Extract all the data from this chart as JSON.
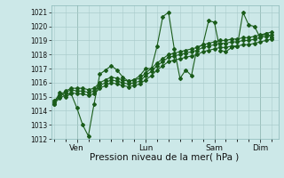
{
  "xlabel": "Pression niveau de la mer( hPa )",
  "bg_color": "#cce8e8",
  "grid_color": "#aacccc",
  "line_color": "#1a5c1a",
  "marker_color": "#1a5c1a",
  "ylim": [
    1012,
    1021.5
  ],
  "yticks": [
    1012,
    1013,
    1014,
    1015,
    1016,
    1017,
    1018,
    1019,
    1020,
    1021
  ],
  "xlim": [
    -3,
    235
  ],
  "day_positions": [
    24,
    96,
    168,
    216
  ],
  "day_labels": [
    "Ven",
    "Lun",
    "Sam",
    "Dim"
  ],
  "vline_color": "#7aaa9a",
  "series1_x": [
    0,
    6,
    12,
    18,
    24,
    30,
    36,
    42,
    48,
    54,
    60,
    66,
    72,
    78,
    84,
    90,
    96,
    102,
    108,
    114,
    120,
    126,
    132,
    138,
    144,
    150,
    156,
    162,
    168,
    174,
    180,
    186,
    192,
    198,
    204,
    210,
    216,
    222,
    228
  ],
  "series1_y": [
    1014.5,
    1015.3,
    1015.0,
    1015.2,
    1014.2,
    1013.0,
    1012.2,
    1014.5,
    1016.6,
    1016.9,
    1017.2,
    1016.9,
    1016.4,
    1016.1,
    1016.2,
    1016.5,
    1017.0,
    1017.0,
    1018.6,
    1020.7,
    1021.0,
    1018.4,
    1016.3,
    1016.9,
    1016.5,
    1018.5,
    1018.7,
    1020.4,
    1020.3,
    1018.3,
    1018.2,
    1018.5,
    1018.6,
    1021.0,
    1020.1,
    1020.0,
    1019.2,
    1019.5,
    1019.2
  ],
  "series2_x": [
    0,
    6,
    12,
    18,
    24,
    30,
    36,
    42,
    48,
    54,
    60,
    66,
    72,
    78,
    84,
    90,
    96,
    102,
    108,
    114,
    120,
    126,
    132,
    138,
    144,
    150,
    156,
    162,
    168,
    174,
    180,
    186,
    192,
    198,
    204,
    210,
    216,
    222,
    228
  ],
  "series2_y": [
    1014.5,
    1014.9,
    1015.1,
    1015.3,
    1015.2,
    1015.2,
    1015.1,
    1015.2,
    1015.6,
    1015.8,
    1016.0,
    1015.9,
    1015.8,
    1015.7,
    1015.8,
    1015.9,
    1016.2,
    1016.5,
    1016.9,
    1017.2,
    1017.5,
    1017.6,
    1017.7,
    1017.8,
    1017.9,
    1018.0,
    1018.2,
    1018.3,
    1018.4,
    1018.5,
    1018.5,
    1018.6,
    1018.6,
    1018.7,
    1018.7,
    1018.8,
    1018.9,
    1019.0,
    1019.1
  ],
  "series3_x": [
    0,
    6,
    12,
    18,
    24,
    30,
    36,
    42,
    48,
    54,
    60,
    66,
    72,
    78,
    84,
    90,
    96,
    102,
    108,
    114,
    120,
    126,
    132,
    138,
    144,
    150,
    156,
    162,
    168,
    174,
    180,
    186,
    192,
    198,
    204,
    210,
    216,
    222,
    228
  ],
  "series3_y": [
    1014.6,
    1015.0,
    1015.3,
    1015.5,
    1015.4,
    1015.4,
    1015.3,
    1015.4,
    1015.8,
    1016.0,
    1016.2,
    1016.1,
    1016.0,
    1015.9,
    1016.0,
    1016.1,
    1016.5,
    1016.8,
    1017.2,
    1017.5,
    1017.8,
    1017.9,
    1018.0,
    1018.1,
    1018.2,
    1018.3,
    1018.5,
    1018.6,
    1018.7,
    1018.8,
    1018.8,
    1018.9,
    1018.9,
    1019.0,
    1019.0,
    1019.1,
    1019.2,
    1019.3,
    1019.4
  ],
  "series4_x": [
    0,
    6,
    12,
    18,
    24,
    30,
    36,
    42,
    48,
    54,
    60,
    66,
    72,
    78,
    84,
    90,
    96,
    102,
    108,
    114,
    120,
    126,
    132,
    138,
    144,
    150,
    156,
    162,
    168,
    174,
    180,
    186,
    192,
    198,
    204,
    210,
    216,
    222,
    228
  ],
  "series4_y": [
    1014.7,
    1015.1,
    1015.4,
    1015.6,
    1015.6,
    1015.6,
    1015.5,
    1015.6,
    1016.0,
    1016.2,
    1016.4,
    1016.3,
    1016.2,
    1016.1,
    1016.2,
    1016.3,
    1016.7,
    1017.0,
    1017.4,
    1017.7,
    1018.0,
    1018.1,
    1018.2,
    1018.3,
    1018.4,
    1018.5,
    1018.7,
    1018.8,
    1018.9,
    1019.0,
    1019.0,
    1019.1,
    1019.1,
    1019.2,
    1019.2,
    1019.3,
    1019.4,
    1019.5,
    1019.6
  ]
}
